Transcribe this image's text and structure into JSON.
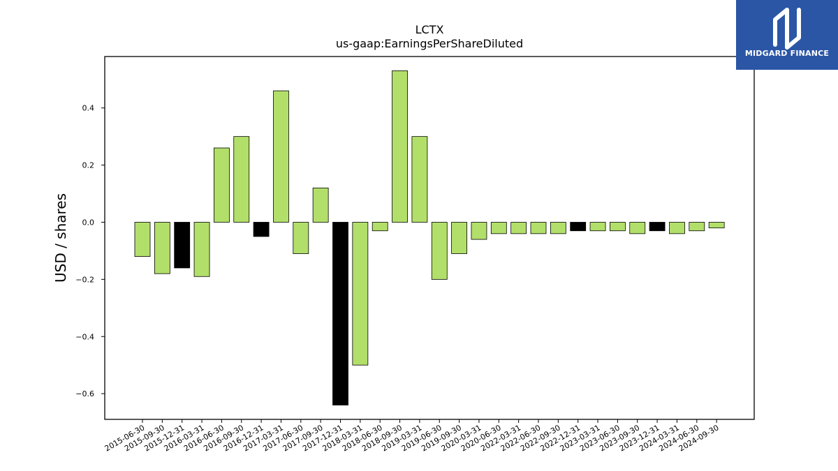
{
  "brand": {
    "name": "MIDGARD FINANCE",
    "bg_color": "#2b56a6"
  },
  "chart_data": {
    "type": "bar",
    "title": "LCTX",
    "subtitle": "us-gaap:EarningsPerShareDiluted",
    "xlabel": "",
    "ylabel": "USD / shares",
    "ylim": [
      -0.69,
      0.58
    ],
    "yticks": [
      -0.6,
      -0.4,
      -0.2,
      0.0,
      0.2,
      0.4
    ],
    "ytick_labels": [
      "−0.6",
      "−0.4",
      "−0.2",
      "0.0",
      "0.2",
      "0.4"
    ],
    "grid": false,
    "legend": "none",
    "colors": {
      "default": "#b2df6a",
      "highlight": "#000000",
      "edge": "#000000"
    },
    "categories": [
      "2015-06-30",
      "2015-09-30",
      "2015-12-31",
      "2016-03-31",
      "2016-06-30",
      "2016-09-30",
      "2016-12-31",
      "2017-03-31",
      "2017-06-30",
      "2017-09-30",
      "2017-12-31",
      "2018-03-31",
      "2018-06-30",
      "2018-09-30",
      "2019-03-31",
      "2019-06-30",
      "2019-09-30",
      "2020-03-31",
      "2020-06-30",
      "2022-03-31",
      "2022-06-30",
      "2022-09-30",
      "2022-12-31",
      "2023-03-31",
      "2023-06-30",
      "2023-09-30",
      "2023-12-31",
      "2024-03-31",
      "2024-06-30",
      "2024-09-30"
    ],
    "values": [
      -0.12,
      -0.18,
      -0.16,
      -0.19,
      0.26,
      0.3,
      -0.05,
      0.46,
      -0.11,
      0.12,
      -0.64,
      -0.5,
      -0.03,
      0.53,
      0.3,
      -0.2,
      -0.11,
      -0.06,
      -0.04,
      -0.04,
      -0.04,
      -0.04,
      -0.03,
      -0.03,
      -0.03,
      -0.04,
      -0.03,
      -0.04,
      -0.03,
      -0.02
    ],
    "highlight": [
      false,
      false,
      true,
      false,
      false,
      false,
      true,
      false,
      false,
      false,
      true,
      false,
      false,
      false,
      false,
      false,
      false,
      false,
      false,
      false,
      false,
      false,
      true,
      false,
      false,
      false,
      true,
      false,
      false,
      false
    ]
  }
}
